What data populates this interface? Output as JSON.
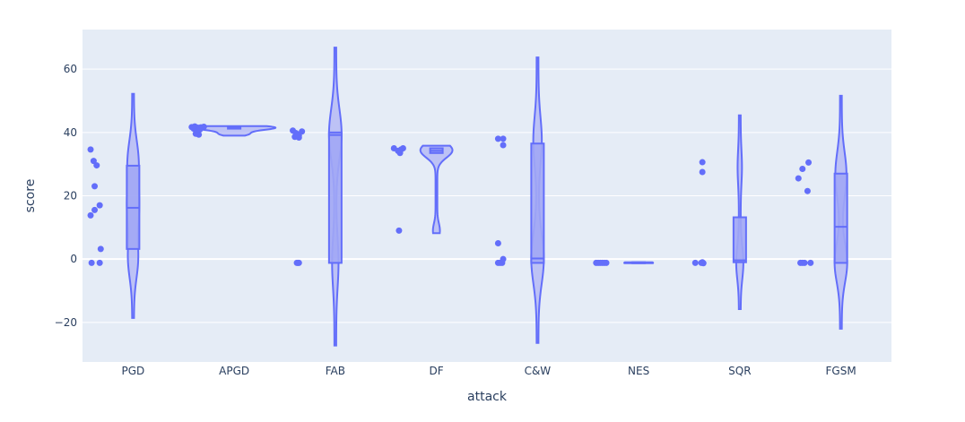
{
  "chart_data": {
    "type": "violin",
    "xlabel": "attack",
    "ylabel": "score",
    "ylim": [
      -32.5,
      72.5
    ],
    "yticks": [
      -20,
      0,
      20,
      40,
      60
    ],
    "ytick_labels": [
      "−20",
      "0",
      "20",
      "40",
      "60"
    ],
    "grid": true,
    "colors": {
      "plot_bg": "#e5ecf6",
      "grid": "#ffffff",
      "series": "#636efa",
      "fill": "#a1a7f5",
      "text": "#2a3f5f"
    },
    "categories": [
      {
        "name": "PGD",
        "range": [
          -18.6,
          52.2
        ],
        "box": [
          3.2,
          29.5
        ],
        "median": 16.2,
        "kde_max": 1.6,
        "points": [
          [
            -0.42,
            34.6
          ],
          [
            -0.39,
            31.0
          ],
          [
            -0.36,
            29.6
          ],
          [
            -0.38,
            23.0
          ],
          [
            -0.33,
            17.0
          ],
          [
            -0.38,
            15.5
          ],
          [
            -0.42,
            13.8
          ],
          [
            -0.32,
            3.2
          ],
          [
            -0.41,
            -1.2
          ],
          [
            -0.33,
            -1.2
          ]
        ]
      },
      {
        "name": "APGD",
        "range": [
          39.0,
          42.0
        ],
        "box": [
          41.2,
          41.9
        ],
        "median": 41.6,
        "kde_max": 12,
        "points": [
          [
            -0.42,
            41.7
          ],
          [
            -0.39,
            41.9
          ],
          [
            -0.36,
            41.5
          ],
          [
            -0.33,
            41.6
          ],
          [
            -0.3,
            41.8
          ],
          [
            -0.4,
            41.2
          ],
          [
            -0.37,
            40.5
          ],
          [
            -0.35,
            39.3
          ],
          [
            -0.38,
            39.6
          ],
          [
            -0.34,
            40.9
          ]
        ]
      },
      {
        "name": "FAB",
        "range": [
          -27.3,
          66.8
        ],
        "box": [
          -1.2,
          40.0
        ],
        "median": 39.2,
        "kde_max": 1.6,
        "points": [
          [
            -0.42,
            40.6
          ],
          [
            -0.39,
            39.8
          ],
          [
            -0.36,
            39.0
          ],
          [
            -0.4,
            38.6
          ],
          [
            -0.36,
            38.4
          ],
          [
            -0.33,
            40.3
          ],
          [
            -0.37,
            39.4
          ],
          [
            -0.37,
            -1.2
          ],
          [
            -0.36,
            -1.2
          ],
          [
            -0.38,
            -1.2
          ]
        ]
      },
      {
        "name": "DF",
        "range": [
          8.2,
          35.8
        ],
        "box": [
          33.5,
          35.0
        ],
        "median": 34.2,
        "kde_max": 4.5,
        "points": [
          [
            -0.42,
            35.0
          ],
          [
            -0.37,
            34.0
          ],
          [
            -0.36,
            33.5
          ],
          [
            -0.33,
            35.0
          ],
          [
            -0.38,
            34.2
          ],
          [
            -0.35,
            34.6
          ],
          [
            -0.37,
            9.0
          ]
        ]
      },
      {
        "name": "C&W",
        "range": [
          -26.5,
          63.7
        ],
        "box": [
          -1.2,
          36.5
        ],
        "median": 0.2,
        "kde_max": 1.6,
        "points": [
          [
            -0.39,
            38.0
          ],
          [
            -0.34,
            38.0
          ],
          [
            -0.34,
            36.0
          ],
          [
            -0.39,
            5.0
          ],
          [
            -0.39,
            -1.2
          ],
          [
            -0.37,
            -1.2
          ],
          [
            -0.35,
            -1.2
          ],
          [
            -0.34,
            0.0
          ]
        ]
      },
      {
        "name": "NES",
        "range": [
          -1.3,
          -1.0
        ],
        "box": [
          -1.3,
          -1.0
        ],
        "median": -1.15,
        "kde_max": 4,
        "points": [
          [
            -0.42,
            -1.2
          ],
          [
            -0.4,
            -1.2
          ],
          [
            -0.38,
            -1.2
          ],
          [
            -0.36,
            -1.2
          ],
          [
            -0.34,
            -1.2
          ],
          [
            -0.32,
            -1.2
          ]
        ]
      },
      {
        "name": "SQR",
        "range": [
          -15.8,
          45.4
        ],
        "box": [
          -1.0,
          13.2
        ],
        "median": -0.4,
        "kde_max": 0.8,
        "points": [
          [
            -0.44,
            -1.2
          ],
          [
            -0.38,
            -1.2
          ],
          [
            -0.37,
            -1.0
          ],
          [
            -0.36,
            -1.3
          ],
          [
            -0.37,
            30.6
          ],
          [
            -0.37,
            27.5
          ]
        ]
      },
      {
        "name": "FGSM",
        "range": [
          -22.0,
          51.6
        ],
        "box": [
          -1.2,
          27.0
        ],
        "median": 10.2,
        "kde_max": 1.6,
        "points": [
          [
            -0.42,
            25.5
          ],
          [
            -0.38,
            28.5
          ],
          [
            -0.32,
            30.5
          ],
          [
            -0.33,
            21.5
          ],
          [
            -0.4,
            -1.2
          ],
          [
            -0.38,
            -1.2
          ],
          [
            -0.36,
            -1.2
          ],
          [
            -0.3,
            -1.2
          ]
        ]
      }
    ]
  }
}
